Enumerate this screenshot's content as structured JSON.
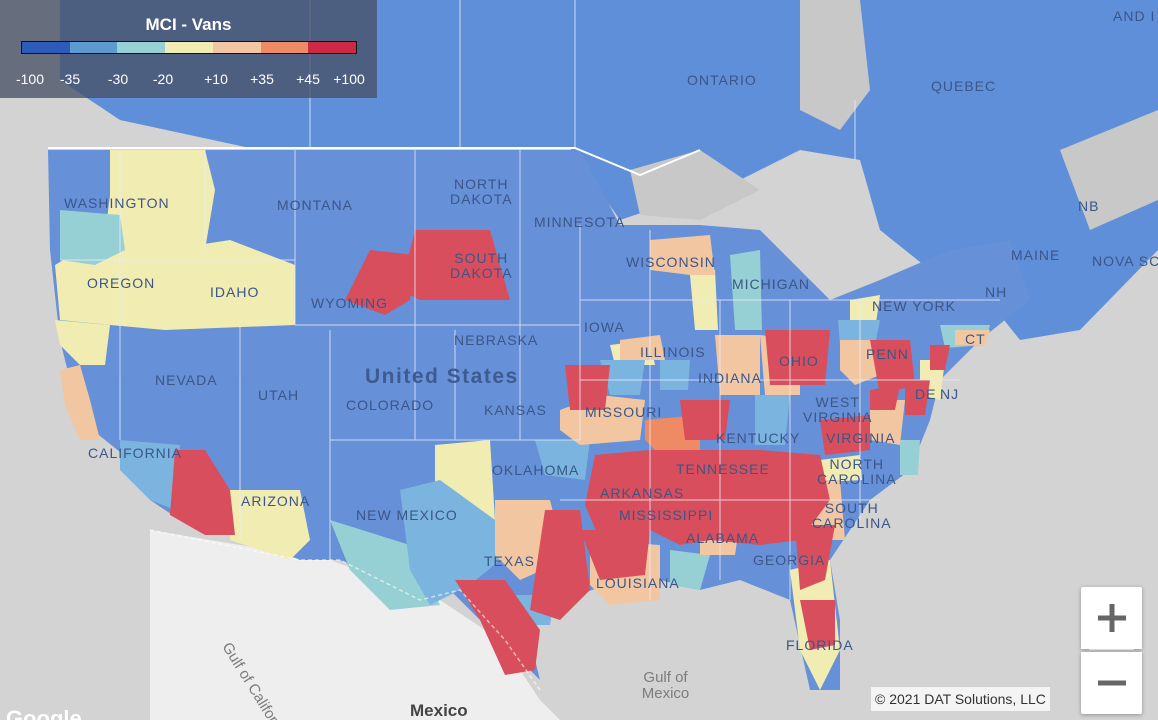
{
  "legend": {
    "title": "MCI - Vans",
    "ticks": [
      "-100",
      "-35",
      "-30",
      "-20",
      "+10",
      "+35",
      "+45",
      "+100"
    ],
    "colors": [
      "#2d5bbb",
      "#5b9bd0",
      "#97d0d4",
      "#f0ecb2",
      "#f3c6a2",
      "#ee8a64",
      "#cc2a44"
    ]
  },
  "map_labels": {
    "united_states": "United States",
    "mexico": "Mexico",
    "gulf_of_mexico": "Gulf of\nMexico",
    "gulf_of_california": "Gulf of California",
    "ontario": "ONTARIO",
    "quebec": "QUEBEC",
    "nb": "NB",
    "nova_scotia": "NOVA SCO",
    "new_brunswick_partial": "AND I",
    "washington": "WASHINGTON",
    "oregon": "OREGON",
    "idaho": "IDAHO",
    "montana": "MONTANA",
    "north_dakota": "NORTH\nDAKOTA",
    "south_dakota": "SOUTH\nDAKOTA",
    "minnesota": "MINNESOTA",
    "wisconsin": "WISCONSIN",
    "michigan": "MICHIGAN",
    "wyoming": "WYOMING",
    "nebraska": "NEBRASKA",
    "iowa": "IOWA",
    "illinois": "ILLINOIS",
    "indiana": "INDIANA",
    "ohio": "OHIO",
    "penn": "PENN",
    "new_york": "NEW YORK",
    "maine": "MAINE",
    "nh": "NH",
    "ct": "CT",
    "nj": "NJ",
    "de": "DE",
    "nevada": "NEVADA",
    "utah": "UTAH",
    "colorado": "COLORADO",
    "kansas": "KANSAS",
    "missouri": "MISSOURI",
    "kentucky": "KENTUCKY",
    "west_virginia": "WEST\nVIRGINIA",
    "virginia": "VIRGINIA",
    "california": "CALIFORNIA",
    "arizona": "ARIZONA",
    "new_mexico": "NEW MEXICO",
    "oklahoma": "OKLAHOMA",
    "arkansas": "ARKANSAS",
    "tennessee": "TENNESSEE",
    "north_carolina": "NORTH\nCAROLINA",
    "south_carolina": "SOUTH\nCAROLINA",
    "mississippi": "MISSISSIPPI",
    "alabama": "ALABAMA",
    "georgia": "GEORGIA",
    "texas": "TEXAS",
    "louisiana": "LOUISIANA",
    "florida": "FLORIDA"
  },
  "controls": {
    "zoom_in": "+",
    "zoom_out": "−"
  },
  "attribution": {
    "copyright": "© 2021 DAT Solutions, LLC",
    "google": "Google"
  }
}
